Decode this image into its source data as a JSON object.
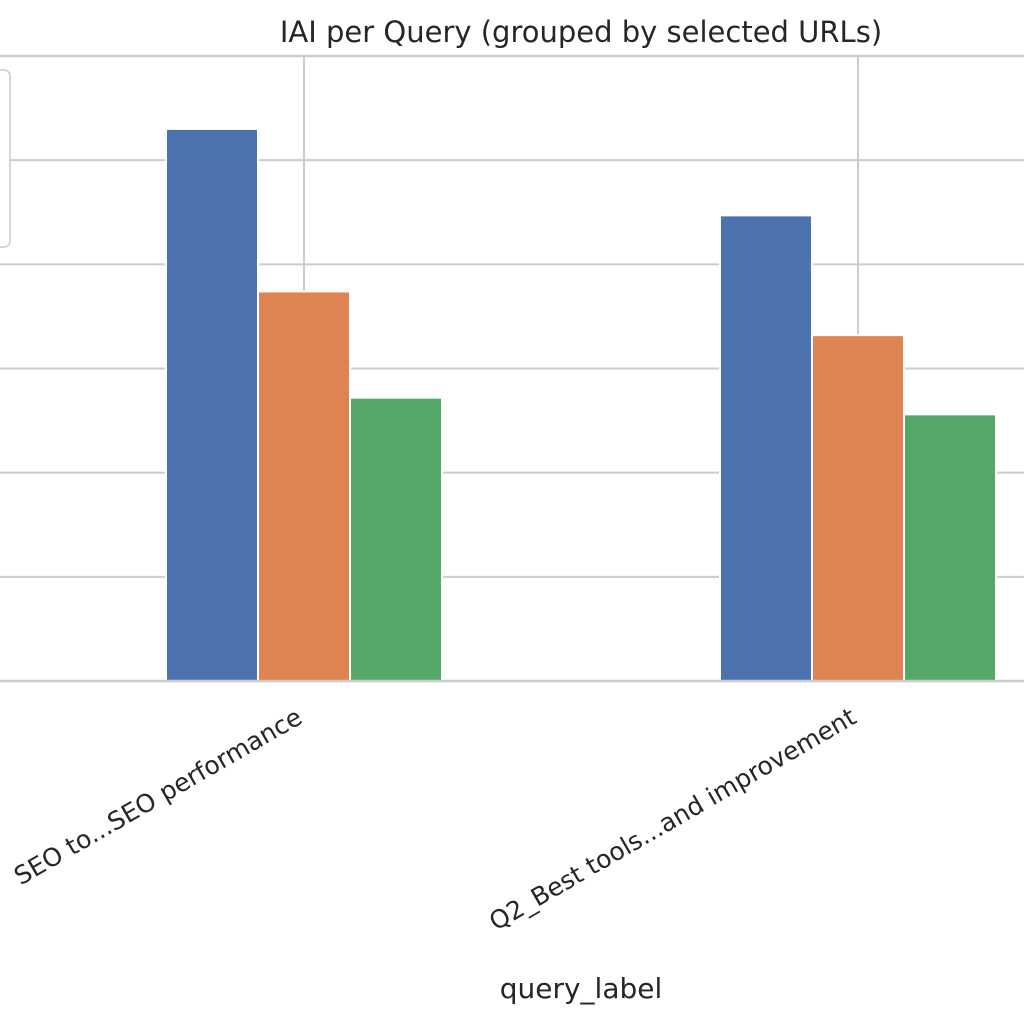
{
  "chart_data": {
    "type": "bar",
    "title": "IAI per Query (grouped by selected URLs)",
    "xlabel": "query_label",
    "ylabel": "",
    "categories": [
      "SEO to...SEO performance",
      "Q2_Best tools...and improvement"
    ],
    "ylim": [
      0,
      6
    ],
    "grid": true,
    "legend_position": "top-left",
    "series": [
      {
        "values": [
          5.3,
          4.47
        ],
        "color": "#4c72b0"
      },
      {
        "values": [
          3.74,
          3.32
        ],
        "color": "#dd8452"
      },
      {
        "values": [
          2.72,
          2.56
        ],
        "color": "#55a868"
      }
    ]
  }
}
